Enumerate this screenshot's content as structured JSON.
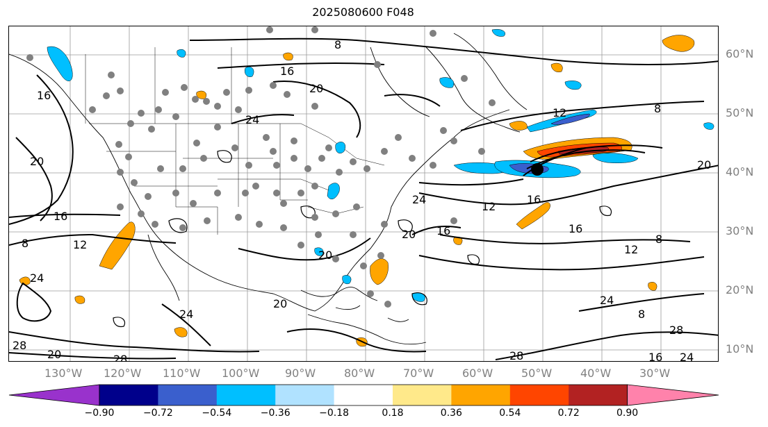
{
  "title": "2025080600 F048",
  "lat_labels": [
    "60°N",
    "50°N",
    "40°N",
    "30°N",
    "20°N",
    "10°N"
  ],
  "lon_labels": [
    "130°W",
    "120°W",
    "110°W",
    "100°W",
    "90°W",
    "80°W",
    "70°W",
    "60°W",
    "50°W",
    "40°W",
    "30°W"
  ],
  "contour_labels": [
    "8",
    "16",
    "20",
    "24",
    "12",
    "8",
    "16",
    "20",
    "28",
    "20",
    "24",
    "28",
    "12",
    "16",
    "8",
    "20",
    "24",
    "16",
    "20",
    "16",
    "24",
    "12",
    "8",
    "12",
    "16",
    "20",
    "24",
    "28",
    "28",
    "24",
    "16",
    "8",
    "20"
  ],
  "colorbar": {
    "colors": [
      "#9932cc",
      "#00008b",
      "#3a5fcd",
      "#00bfff",
      "#b0e2ff",
      "#ffffff",
      "#ffe98a",
      "#ffa500",
      "#ff4500",
      "#b22222",
      "#ff82ab"
    ],
    "ticks": [
      "−0.90",
      "−0.72",
      "−0.54",
      "−0.36",
      "−0.18",
      "0.18",
      "0.36",
      "0.54",
      "0.72",
      "0.90"
    ]
  }
}
